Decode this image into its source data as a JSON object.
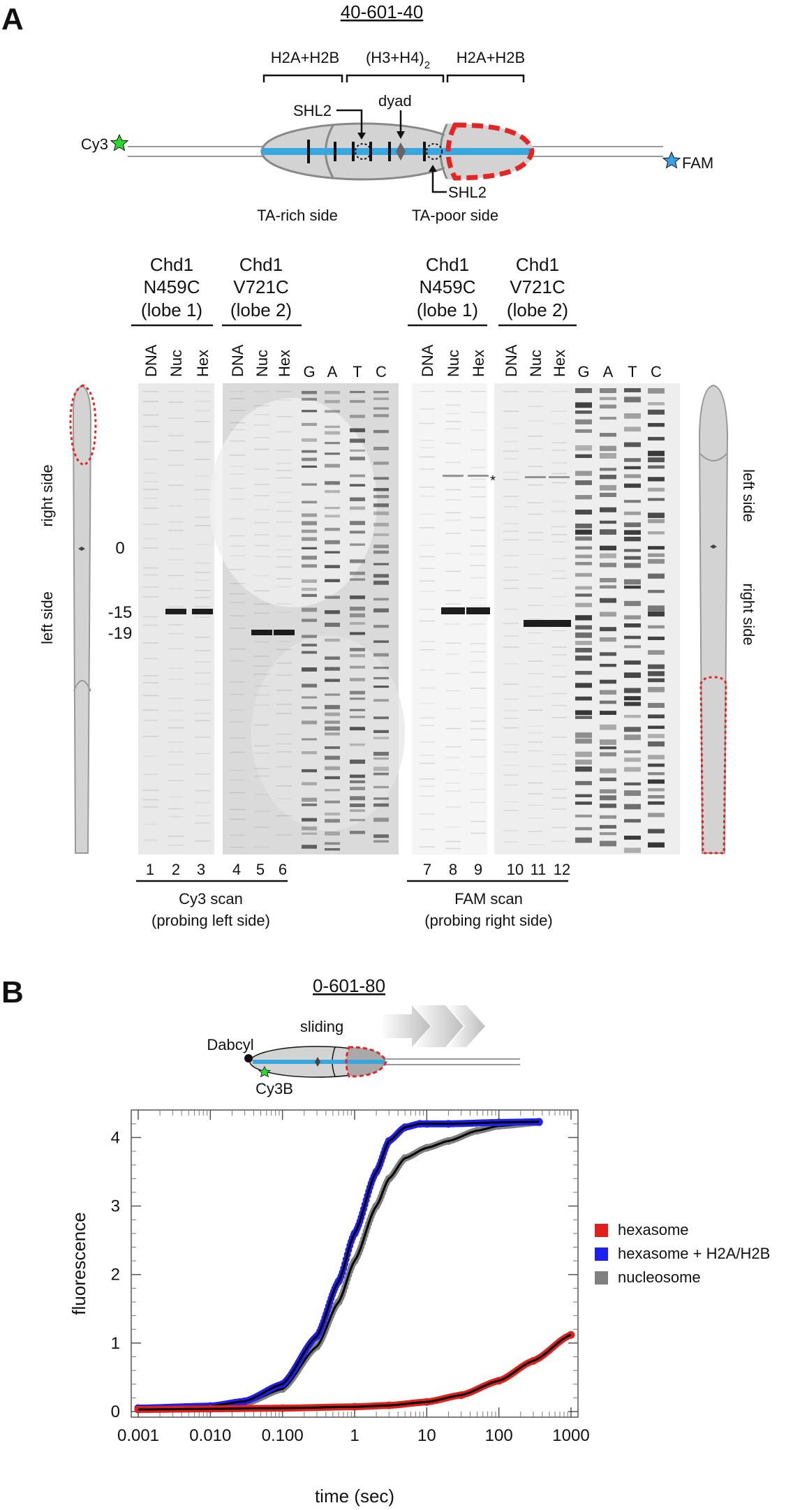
{
  "panel_a": {
    "letter": "A",
    "construct": "40-601-40",
    "top_labels": {
      "h2a_h2b_left": "H2A+H2B",
      "h3h4": "(H3+H4)",
      "h3h4_sub": "2",
      "h2a_h2b_right": "H2A+H2B"
    },
    "cy3": "Cy3",
    "fam": "FAM",
    "shl2_top": "SHL2",
    "dyad": "dyad",
    "shl2_bottom": "SHL2",
    "ta_rich": "TA-rich side",
    "ta_poor": "TA-poor side",
    "groups": [
      {
        "line1": "Chd1",
        "line2": "N459C",
        "line3": "(lobe 1)"
      },
      {
        "line1": "Chd1",
        "line2": "V721C",
        "line3": "(lobe 2)"
      },
      {
        "line1": "Chd1",
        "line2": "N459C",
        "line3": "(lobe 1)"
      },
      {
        "line1": "Chd1",
        "line2": "V721C",
        "line3": "(lobe 2)"
      }
    ],
    "lanes": [
      "DNA",
      "Nuc",
      "Hex",
      "DNA",
      "Nuc",
      "Hex",
      "G",
      "A",
      "T",
      "C",
      "DNA",
      "Nuc",
      "Hex",
      "DNA",
      "Nuc",
      "Hex",
      "G",
      "A",
      "T",
      "C"
    ],
    "lane_numbers": [
      "1",
      "2",
      "3",
      "4",
      "5",
      "6",
      "7",
      "8",
      "9",
      "10",
      "11",
      "12"
    ],
    "left_side_labels": {
      "right_side": "right side",
      "left_side": "left side"
    },
    "right_side_labels": {
      "left_side": "left side",
      "right_side": "right side"
    },
    "position_marks": {
      "zero": "0",
      "m15": "-15",
      "m19": "-19"
    },
    "asterisk": "*",
    "scan_left": {
      "line1": "Cy3 scan",
      "line2": "(probing left side)"
    },
    "scan_right": {
      "line1": "FAM scan",
      "line2": "(probing right side)"
    }
  },
  "panel_b": {
    "letter": "B",
    "construct": "0-601-80",
    "sliding": "sliding",
    "dabcyl": "Dabcyl",
    "cy3b": "Cy3B"
  },
  "chart_data": {
    "type": "scatter",
    "title": "",
    "xlabel": "time (sec)",
    "ylabel": "fluorescence",
    "x_scale": "log",
    "xlim": [
      0.001,
      1000
    ],
    "ylim": [
      0,
      4.3
    ],
    "x_ticks": [
      "0.001",
      "0.010",
      "0.100",
      "1",
      "10",
      "100",
      "1000"
    ],
    "y_ticks": [
      "0",
      "1",
      "2",
      "3",
      "4"
    ],
    "legend_position": "right",
    "series": [
      {
        "name": "hexasome",
        "color": "#e0201c",
        "x": [
          0.001,
          0.01,
          0.1,
          1,
          3,
          10,
          30,
          100,
          300,
          1000
        ],
        "y": [
          0.03,
          0.04,
          0.05,
          0.07,
          0.09,
          0.14,
          0.24,
          0.45,
          0.74,
          1.12
        ]
      },
      {
        "name": "hexasome + H2A/H2B",
        "color": "#1f1ff0",
        "x": [
          0.001,
          0.01,
          0.03,
          0.1,
          0.3,
          0.6,
          1,
          2,
          3,
          5,
          8,
          10,
          20,
          100,
          360
        ],
        "y": [
          0.05,
          0.08,
          0.15,
          0.4,
          1.1,
          1.9,
          2.6,
          3.5,
          3.95,
          4.15,
          4.2,
          4.2,
          4.2,
          4.22,
          4.23
        ]
      },
      {
        "name": "nucleosome",
        "color": "#808080",
        "x": [
          0.001,
          0.01,
          0.03,
          0.1,
          0.3,
          0.6,
          1,
          2,
          3,
          5,
          10,
          20,
          50,
          100,
          360
        ],
        "y": [
          0.05,
          0.07,
          0.12,
          0.33,
          0.95,
          1.6,
          2.2,
          3.0,
          3.4,
          3.7,
          3.85,
          3.95,
          4.1,
          4.17,
          4.22
        ]
      }
    ]
  },
  "colors": {
    "dna_blue": "#3aa6e0",
    "cy3_green": "#2fd62f",
    "fam_blue": "#3ba0e0",
    "red_dash": "#e32525",
    "histone_gray": "#d3d3d3"
  }
}
